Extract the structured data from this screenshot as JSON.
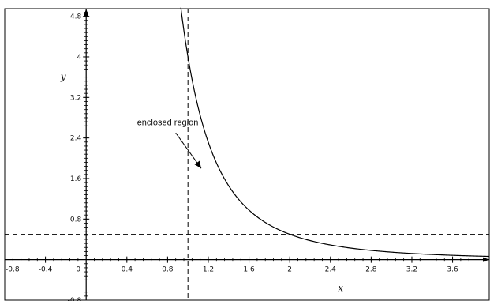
{
  "chart_data": {
    "type": "line",
    "title": "",
    "xlabel": "x",
    "ylabel": "y",
    "xlim": [
      -0.8,
      3.96
    ],
    "ylim": [
      -0.8,
      4.95
    ],
    "x_major_ticks": [
      -0.8,
      -0.4,
      0,
      0.4,
      0.8,
      1.2,
      1.6,
      2,
      2.4,
      2.8,
      3.2,
      3.6
    ],
    "x_tick_labels": [
      "-0.8",
      "-0.4",
      "0",
      "0.4",
      "0.8",
      "1.2",
      "1.6",
      "2",
      "2.4",
      "2.8",
      "3.2",
      "3.6"
    ],
    "y_major_ticks": [
      -0.8,
      0.8,
      1.6,
      2.4,
      3.2,
      4,
      4.8
    ],
    "y_tick_labels": [
      "-0.8",
      "0.8",
      "1.6",
      "2.4",
      "3.2",
      "4",
      "4.8"
    ],
    "minor_tick_step": 0.08,
    "grid": false,
    "series": [
      {
        "function": "y = 4/x^3",
        "x": [
          0.93,
          0.96,
          1.0,
          1.05,
          1.1,
          1.2,
          1.3,
          1.4,
          1.5,
          1.6,
          1.8,
          2.0,
          2.2,
          2.4,
          2.6,
          2.8,
          3.0,
          3.2,
          3.4,
          3.6,
          3.8,
          3.96
        ],
        "y": [
          4.97,
          4.52,
          4.0,
          3.46,
          3.01,
          2.31,
          1.82,
          1.46,
          1.19,
          0.98,
          0.69,
          0.5,
          0.38,
          0.29,
          0.23,
          0.18,
          0.15,
          0.12,
          0.1,
          0.09,
          0.07,
          0.06
        ],
        "color": "#000000"
      }
    ],
    "reference_lines": [
      {
        "orientation": "vertical",
        "x": 1,
        "style": "dashed"
      },
      {
        "orientation": "horizontal",
        "y": 0.5,
        "style": "dashed"
      }
    ],
    "annotations": [
      {
        "text": "enclosed region",
        "text_at": [
          0.5,
          2.65
        ],
        "arrow_to": [
          1.13,
          1.8
        ]
      }
    ]
  }
}
